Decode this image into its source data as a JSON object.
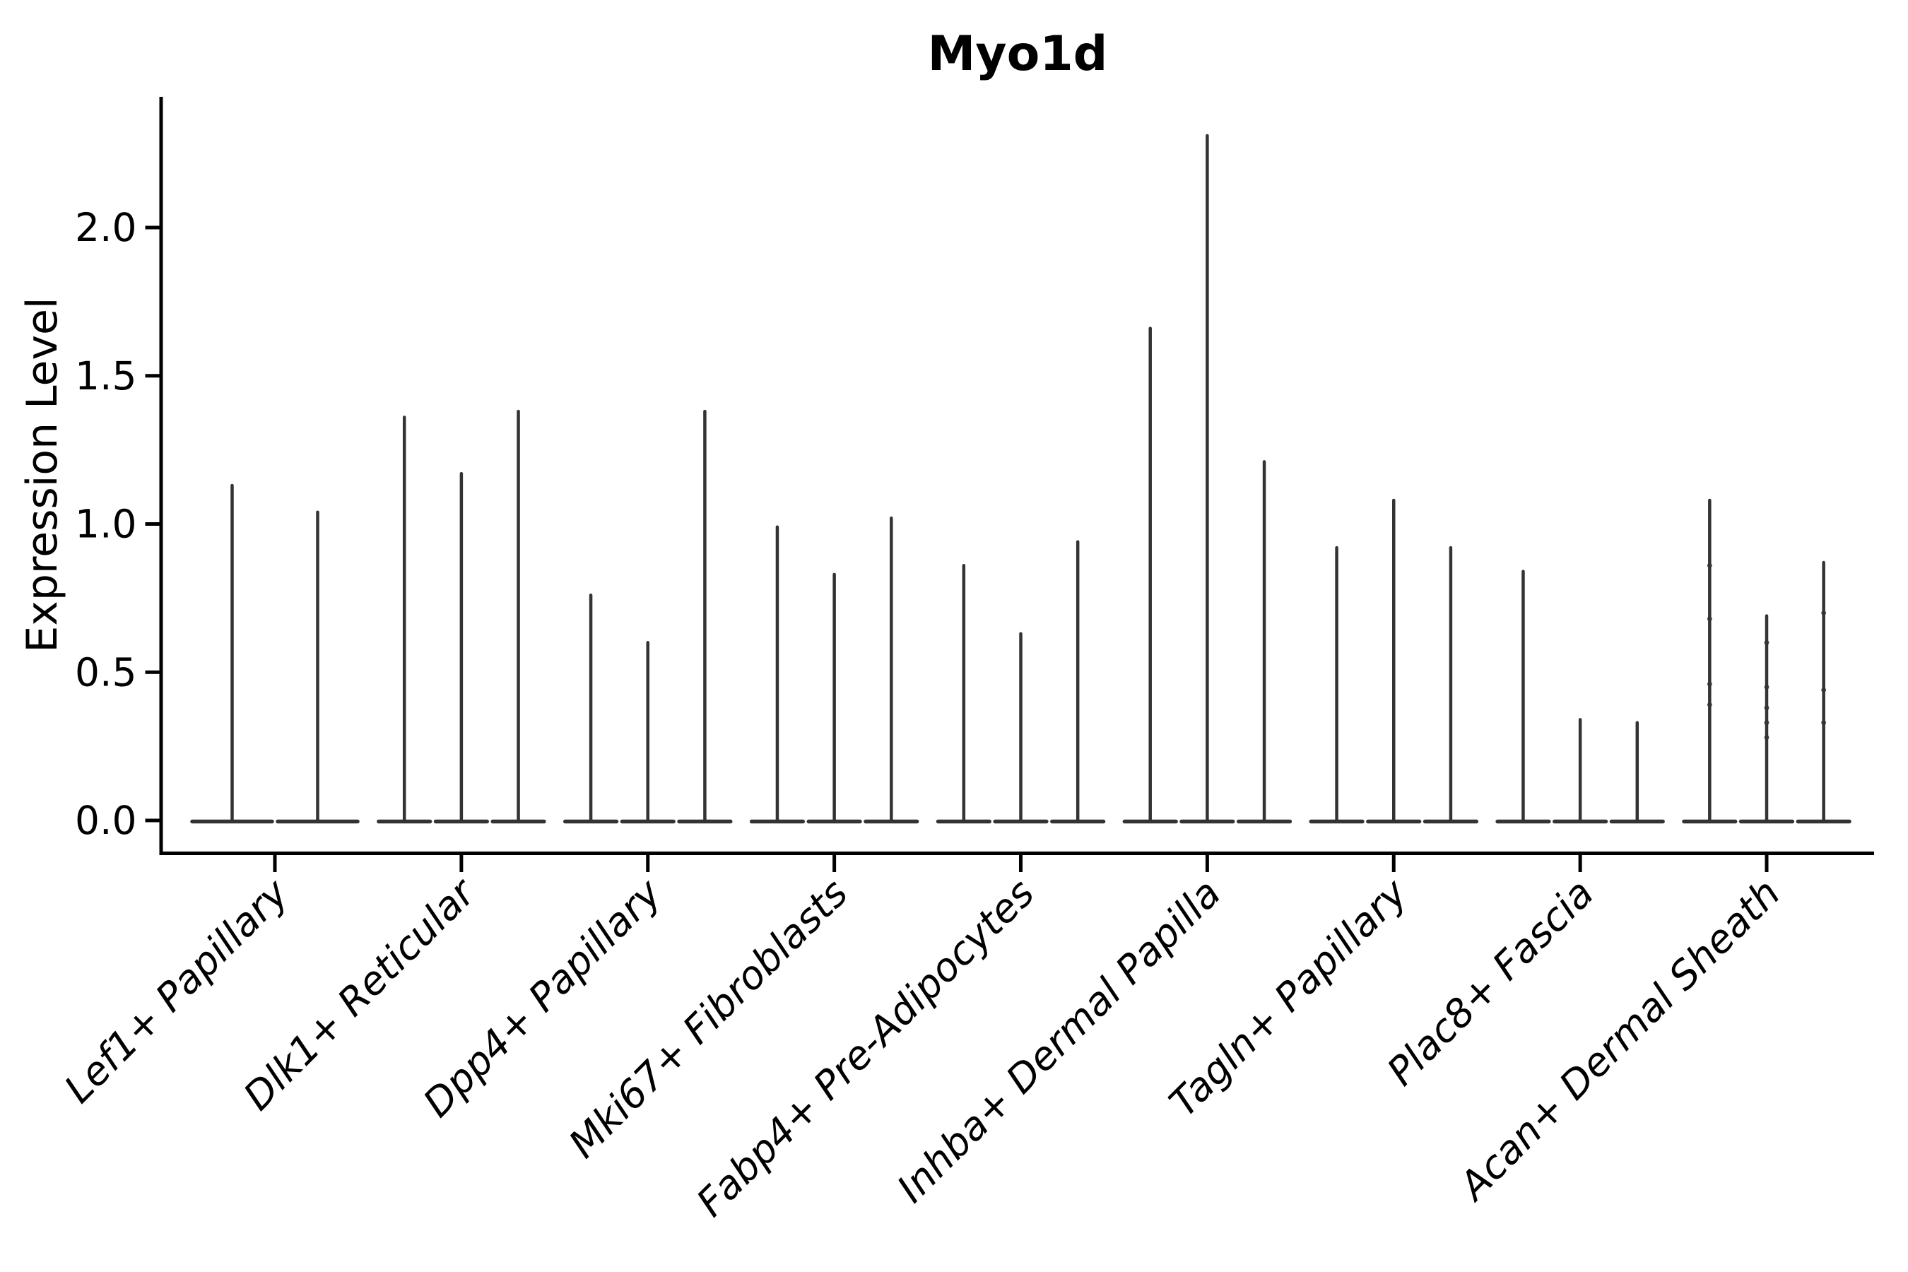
{
  "figure_title": "Myo1d",
  "chart_data": {
    "type": "violin",
    "title": "Myo1d",
    "xlabel": "",
    "ylabel": "Expression Level",
    "yticks": [
      0.0,
      0.5,
      1.0,
      1.5,
      2.0
    ],
    "ytick_labels": [
      "0.0",
      "0.5",
      "1.0",
      "1.5",
      "2.0"
    ],
    "ylim": [
      -0.11,
      2.44
    ],
    "grid": false,
    "legend": "none",
    "orientation": "vertical",
    "violin_shape_note": "Each violin has nearly all density in a flat disc at 0 with a thin vertical tail reaching its maximum expression value",
    "categories": [
      "Lef1+ Papillary",
      "Dlk1+ Reticular",
      "Dpp4+ Papillary",
      "Mki67+ Fibroblasts",
      "Fabp4+ Pre-Adipocytes",
      "Inhba+ Dermal Papilla",
      "Tagln+ Papillary",
      "Plac8+ Fascia",
      "Acan+ Dermal Sheath"
    ],
    "groups": [
      {
        "category": "Lef1+ Papillary",
        "violin_max_values": [
          1.13,
          1.04
        ]
      },
      {
        "category": "Dlk1+ Reticular",
        "violin_max_values": [
          1.36,
          1.17,
          1.38
        ]
      },
      {
        "category": "Dpp4+ Papillary",
        "violin_max_values": [
          0.76,
          0.6,
          1.38
        ]
      },
      {
        "category": "Mki67+ Fibroblasts",
        "violin_max_values": [
          0.99,
          0.83,
          1.02
        ]
      },
      {
        "category": "Fabp4+ Pre-Adipocytes",
        "violin_max_values": [
          0.86,
          0.63,
          0.94
        ]
      },
      {
        "category": "Inhba+ Dermal Papilla",
        "violin_max_values": [
          1.66,
          2.31,
          1.21
        ]
      },
      {
        "category": "Tagln+ Papillary",
        "violin_max_values": [
          0.92,
          1.08,
          0.92
        ]
      },
      {
        "category": "Plac8+ Fascia",
        "violin_max_values": [
          0.84,
          0.34,
          0.33
        ]
      },
      {
        "category": "Acan+ Dermal Sheath",
        "violin_max_values": [
          1.08,
          0.69,
          0.87
        ],
        "point_dots": [
          [
            0.86,
            0.68,
            0.46,
            0.39
          ],
          [
            0.6,
            0.45,
            0.38,
            0.33,
            0.28
          ],
          [
            0.7,
            0.44,
            0.33
          ]
        ]
      }
    ]
  },
  "colors": {
    "violin": "#333333",
    "axis": "#000000",
    "text": "#000000",
    "background": "#ffffff"
  }
}
